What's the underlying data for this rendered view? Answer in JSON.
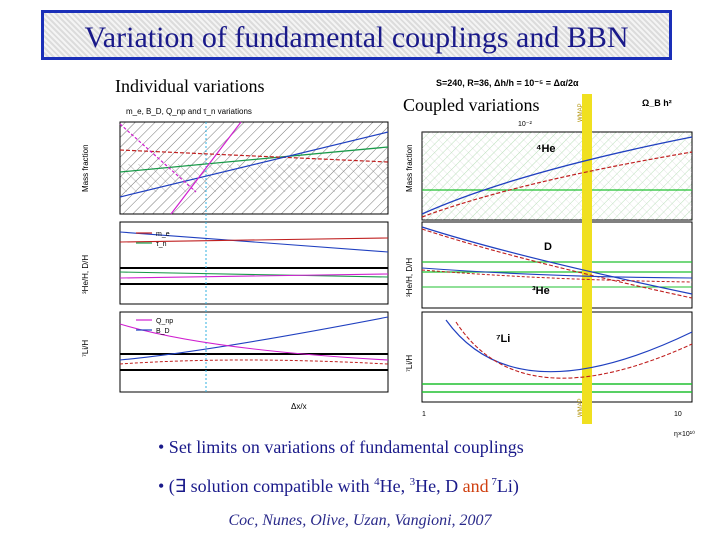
{
  "title": "Variation of fundamental couplings and BBN",
  "left_panel": {
    "caption": "Individual variations",
    "header": "m_e, B_D, Q_np and τ_n variations",
    "y_labels": [
      "Mass fraction",
      "³He/H, D/H",
      "⁷Li/H"
    ],
    "x_label": "Δx/x",
    "legend_mid": [
      "m_e",
      "τ_n"
    ],
    "legend_bot": [
      "Q_np",
      "B_D"
    ],
    "colors": {
      "magenta": "#d020d0",
      "green": "#1a9a4a",
      "blue": "#2040c0",
      "red": "#c02020",
      "cyan": "#30b0e0"
    }
  },
  "right_panel": {
    "caption": "Coupled variations",
    "header": "S=240, R=36, Δh/h = 10⁻⁵ = Δα/2α",
    "omega_label": "Ω_B h²",
    "scale_top": "10⁻²",
    "y_labels": [
      "Mass fraction",
      "³He/H, D/H",
      "⁷Li/H"
    ],
    "curve_labels": {
      "he4": "⁴He",
      "d": "D",
      "he3": "³He",
      "li7": "⁷Li"
    },
    "x_ticks": [
      "1",
      "10"
    ],
    "x_label": "η×10¹⁰",
    "wmap_label": "WMAP",
    "colors": {
      "wmap": "#f0e020",
      "blue": "#2040c0",
      "red": "#c02020",
      "green": "#20c030"
    }
  },
  "bullets": [
    {
      "prefix": "• Set limits on variations of fundamental couplings"
    },
    {
      "prefix": "• (∃ solution compatible with ",
      "sup1": "4",
      "t1": "He, ",
      "sup2": "3",
      "t2": "He, D ",
      "and": "and",
      "sup3": " 7",
      "t3": "Li)"
    }
  ],
  "credit": "Coc, Nunes, Olive, Uzan, Vangioni, 2007"
}
